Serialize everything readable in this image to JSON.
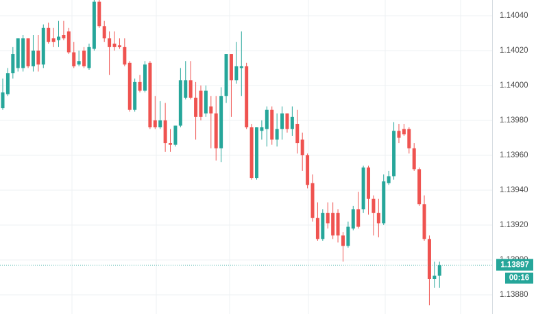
{
  "chart_data": {
    "type": "candlestick",
    "open": [
      1.13987,
      1.13995,
      1.14007,
      1.1401,
      1.1401,
      1.14027,
      1.14011,
      1.1402,
      1.14012,
      1.14033,
      1.14027,
      1.14026,
      1.14029,
      1.14031,
      1.14019,
      1.14012,
      1.1402,
      1.1401,
      1.14021,
      1.14048,
      1.14034,
      1.14027,
      1.14024,
      1.14023,
      1.14022,
      1.14013,
      1.13986,
      1.14002,
      1.13997,
      1.14013,
      1.1398,
      1.13976,
      1.1398,
      1.13967,
      1.13966,
      1.13977,
      1.13993,
      1.14003,
      1.13993,
      1.13997,
      1.13984,
      1.13988,
      1.13984,
      1.13964,
      1.13994,
      1.14018,
      1.14003,
      1.1401,
      1.14011,
      1.13976,
      1.13947,
      1.13974,
      1.13975,
      1.13986,
      1.13969,
      1.13975,
      1.13984,
      1.13975,
      1.13978,
      1.13969,
      1.1396,
      1.13944,
      1.13924,
      1.13912,
      1.13927,
      1.13927,
      1.13927,
      1.13914,
      1.13908,
      1.13918,
      1.13929,
      1.13929,
      1.13953,
      1.13935,
      1.13927,
      1.13921,
      1.13944,
      1.13948,
      1.13974,
      1.13975,
      1.13975,
      1.13964,
      1.13952,
      1.13932,
      1.13912,
      1.13889,
      1.13891
    ],
    "high": [
      1.14004,
      1.1401,
      1.14022,
      1.14027,
      1.14029,
      1.14027,
      1.14029,
      1.14029,
      1.14035,
      1.14036,
      1.14033,
      1.14037,
      1.14037,
      1.14033,
      1.14025,
      1.1402,
      1.14022,
      1.14024,
      1.14049,
      1.14049,
      1.14037,
      1.14031,
      1.14031,
      1.14027,
      1.14027,
      1.14014,
      1.14004,
      1.14006,
      1.14014,
      1.14014,
      1.13994,
      1.13991,
      1.1399,
      1.13975,
      1.13977,
      1.1401,
      1.14014,
      1.14014,
      1.14002,
      1.14,
      1.14,
      1.13994,
      1.13994,
      1.13999,
      1.14018,
      1.14018,
      1.14025,
      1.14031,
      1.14013,
      1.13978,
      1.13976,
      1.1398,
      1.13988,
      1.13988,
      1.13984,
      1.13988,
      1.13984,
      1.13988,
      1.13986,
      1.13973,
      1.13961,
      1.13949,
      1.13933,
      1.13929,
      1.13933,
      1.13933,
      1.13929,
      1.13916,
      1.13922,
      1.13931,
      1.13939,
      1.13954,
      1.13954,
      1.13937,
      1.13935,
      1.13949,
      1.13951,
      1.13979,
      1.13978,
      1.13978,
      1.13976,
      1.13967,
      1.13953,
      1.13937,
      1.13914,
      1.13899,
      1.13899
    ],
    "low": [
      1.13986,
      1.13994,
      1.14004,
      1.14008,
      1.14008,
      1.1401,
      1.14008,
      1.14008,
      1.1401,
      1.14024,
      1.14022,
      1.14022,
      1.14026,
      1.14018,
      1.1401,
      1.14011,
      1.1401,
      1.14009,
      1.1402,
      1.14033,
      1.14025,
      1.14006,
      1.1402,
      1.14021,
      1.14011,
      1.13985,
      1.13985,
      1.13996,
      1.13996,
      1.13975,
      1.13975,
      1.13975,
      1.13962,
      1.13962,
      1.13965,
      1.13976,
      1.13992,
      1.13992,
      1.13969,
      1.1398,
      1.13982,
      1.13964,
      1.13957,
      1.13956,
      1.1399,
      1.13982,
      1.14001,
      1.13994,
      1.13975,
      1.13946,
      1.13946,
      1.13969,
      1.13965,
      1.13966,
      1.13965,
      1.13969,
      1.13973,
      1.13971,
      1.13961,
      1.13951,
      1.13941,
      1.13922,
      1.13911,
      1.13911,
      1.13918,
      1.13912,
      1.1391,
      1.13899,
      1.13907,
      1.13917,
      1.13918,
      1.13927,
      1.13926,
      1.13914,
      1.13913,
      1.1392,
      1.13943,
      1.13946,
      1.13967,
      1.13971,
      1.13961,
      1.13951,
      1.13931,
      1.13911,
      1.13874,
      1.13884,
      1.13884
    ],
    "close": [
      1.13996,
      1.14007,
      1.14018,
      1.14027,
      1.14027,
      1.14011,
      1.1402,
      1.14012,
      1.14033,
      1.14025,
      1.14025,
      1.14028,
      1.14027,
      1.14019,
      1.14011,
      1.14014,
      1.14011,
      1.14022,
      1.14048,
      1.14034,
      1.14027,
      1.14022,
      1.14022,
      1.14022,
      1.14012,
      1.13986,
      1.14002,
      1.13997,
      1.14012,
      1.13976,
      1.13976,
      1.1398,
      1.13967,
      1.13966,
      1.13977,
      1.14003,
      1.14003,
      1.13993,
      1.13982,
      1.13982,
      1.13997,
      1.13984,
      1.13964,
      1.13994,
      1.14018,
      1.14003,
      1.14011,
      1.14011,
      1.13976,
      1.13947,
      1.13976,
      1.13976,
      1.13986,
      1.13969,
      1.13975,
      1.13984,
      1.13975,
      1.13982,
      1.13967,
      1.1396,
      1.13943,
      1.13924,
      1.13912,
      1.13927,
      1.13921,
      1.13914,
      1.13914,
      1.13908,
      1.13919,
      1.13929,
      1.13919,
      1.13953,
      1.13935,
      1.13927,
      1.13921,
      1.13945,
      1.13948,
      1.13974,
      1.1397,
      1.13972,
      1.13964,
      1.13952,
      1.13932,
      1.13912,
      1.13889,
      1.13891,
      1.13897
    ],
    "up_color": "#26a69a",
    "down_color": "#ef5350",
    "ylim": [
      1.13869,
      1.14049
    ],
    "yticks": [
      {
        "value": 1.1404,
        "label": "1.14040"
      },
      {
        "value": 1.1402,
        "label": "1.14020"
      },
      {
        "value": 1.14,
        "label": "1.14000"
      },
      {
        "value": 1.1398,
        "label": "1.13980"
      },
      {
        "value": 1.1396,
        "label": "1.13960"
      },
      {
        "value": 1.1394,
        "label": "1.13940"
      },
      {
        "value": 1.1392,
        "label": "1.13920"
      },
      {
        "value": 1.139,
        "label": "1.13900"
      },
      {
        "value": 1.1388,
        "label": "1.13880"
      }
    ],
    "grid": true,
    "last_price": 1.13897,
    "countdown": "00:16"
  }
}
